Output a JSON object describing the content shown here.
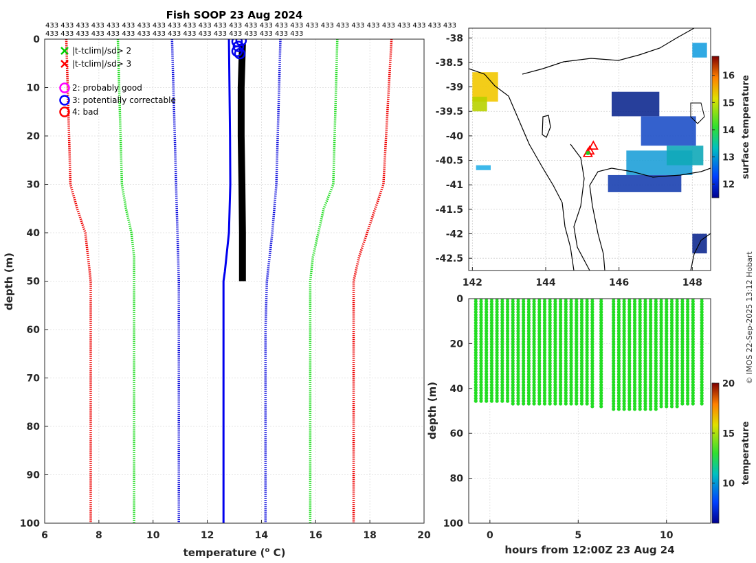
{
  "figure": {
    "copyright": "© IMOS 22-Sep-2025 13:12 Hobart"
  },
  "chart_data": [
    {
      "id": "profile",
      "type": "line",
      "title": "Fish SOOP 23 Aug 2024",
      "xlabel": "temperature (",
      "xlabel_sup": "o",
      "xlabel_end": " C)",
      "ylabel": "depth (m)",
      "xlim": [
        6,
        20
      ],
      "ylim": [
        100,
        0
      ],
      "xticks": [
        6,
        8,
        10,
        12,
        14,
        16,
        18,
        20
      ],
      "yticks": [
        0,
        10,
        20,
        30,
        40,
        50,
        60,
        70,
        80,
        90,
        100
      ],
      "grid": true,
      "top_labels": {
        "row1_text": "433",
        "row1_count": 27,
        "row2_text": "433",
        "row2_count": 17
      },
      "legend": [
        {
          "label": "|t-tclim|/sd> 2",
          "marker": "x",
          "color": "#00cc00"
        },
        {
          "label": "|t-tclim|/sd> 3",
          "marker": "x",
          "color": "#ff0000"
        },
        {
          "label": "2: probably good",
          "marker": "o",
          "color": "#ff00ff"
        },
        {
          "label": "3: potentially correctable",
          "marker": "o",
          "color": "#0000ff"
        },
        {
          "label": "4: bad",
          "marker": "o",
          "color": "#ff0000"
        }
      ],
      "series": [
        {
          "name": "clim -3sd",
          "color": "#ee0000",
          "points": [
            [
              6.8,
              0
            ],
            [
              6.85,
              10
            ],
            [
              6.9,
              20
            ],
            [
              6.95,
              30
            ],
            [
              7.2,
              35
            ],
            [
              7.5,
              40
            ],
            [
              7.6,
              45
            ],
            [
              7.7,
              50
            ],
            [
              7.7,
              60
            ],
            [
              7.7,
              70
            ],
            [
              7.7,
              80
            ],
            [
              7.7,
              90
            ],
            [
              7.7,
              100
            ]
          ]
        },
        {
          "name": "clim -2sd",
          "color": "#22dd22",
          "points": [
            [
              8.7,
              0
            ],
            [
              8.75,
              10
            ],
            [
              8.8,
              20
            ],
            [
              8.85,
              30
            ],
            [
              9.0,
              35
            ],
            [
              9.2,
              40
            ],
            [
              9.3,
              45
            ],
            [
              9.3,
              50
            ],
            [
              9.3,
              60
            ],
            [
              9.3,
              70
            ],
            [
              9.3,
              80
            ],
            [
              9.3,
              90
            ],
            [
              9.3,
              100
            ]
          ]
        },
        {
          "name": "clim -1sd",
          "color": "#1111dd",
          "points": [
            [
              10.7,
              0
            ],
            [
              10.75,
              10
            ],
            [
              10.8,
              20
            ],
            [
              10.85,
              30
            ],
            [
              10.9,
              40
            ],
            [
              10.95,
              50
            ],
            [
              10.95,
              60
            ],
            [
              10.95,
              70
            ],
            [
              10.95,
              80
            ],
            [
              10.95,
              90
            ],
            [
              10.95,
              100
            ]
          ]
        },
        {
          "name": "clim +1sd",
          "color": "#1111dd",
          "points": [
            [
              14.7,
              0
            ],
            [
              14.65,
              10
            ],
            [
              14.6,
              20
            ],
            [
              14.55,
              30
            ],
            [
              14.4,
              40
            ],
            [
              14.2,
              50
            ],
            [
              14.15,
              60
            ],
            [
              14.15,
              70
            ],
            [
              14.15,
              80
            ],
            [
              14.15,
              90
            ],
            [
              14.15,
              100
            ]
          ]
        },
        {
          "name": "clim +2sd",
          "color": "#22dd22",
          "points": [
            [
              16.8,
              0
            ],
            [
              16.75,
              10
            ],
            [
              16.7,
              20
            ],
            [
              16.65,
              30
            ],
            [
              16.3,
              35
            ],
            [
              16.1,
              40
            ],
            [
              15.9,
              45
            ],
            [
              15.8,
              50
            ],
            [
              15.8,
              60
            ],
            [
              15.8,
              70
            ],
            [
              15.8,
              80
            ],
            [
              15.8,
              90
            ],
            [
              15.8,
              100
            ]
          ]
        },
        {
          "name": "clim +3sd",
          "color": "#ee0000",
          "points": [
            [
              18.8,
              0
            ],
            [
              18.7,
              10
            ],
            [
              18.6,
              20
            ],
            [
              18.5,
              30
            ],
            [
              18.2,
              35
            ],
            [
              17.9,
              40
            ],
            [
              17.6,
              45
            ],
            [
              17.4,
              50
            ],
            [
              17.4,
              60
            ],
            [
              17.4,
              70
            ],
            [
              17.4,
              80
            ],
            [
              17.4,
              90
            ],
            [
              17.4,
              100
            ]
          ]
        },
        {
          "name": "clim mean",
          "color": "#0000ee",
          "width": 3,
          "solid": true,
          "points": [
            [
              12.8,
              0
            ],
            [
              12.82,
              10
            ],
            [
              12.84,
              20
            ],
            [
              12.85,
              30
            ],
            [
              12.8,
              40
            ],
            [
              12.65,
              48
            ],
            [
              12.6,
              50
            ],
            [
              12.6,
              60
            ],
            [
              12.6,
              70
            ],
            [
              12.6,
              80
            ],
            [
              12.6,
              90
            ],
            [
              12.6,
              100
            ]
          ]
        },
        {
          "name": "profiles",
          "color": "#000000",
          "width": 10,
          "solid": true,
          "points": [
            [
              13.3,
              1
            ],
            [
              13.25,
              10
            ],
            [
              13.25,
              20
            ],
            [
              13.28,
              30
            ],
            [
              13.3,
              40
            ],
            [
              13.3,
              50
            ]
          ]
        }
      ],
      "flag_circles": [
        [
          13.1,
          0.5
        ],
        [
          13.25,
          0.3
        ],
        [
          13.15,
          1.5
        ],
        [
          13.1,
          2.5
        ],
        [
          13.2,
          3.0
        ]
      ]
    },
    {
      "id": "map",
      "type": "heatmap",
      "colorbar_label": "surface temperature",
      "colorbar_range": [
        11.5,
        16.7
      ],
      "colorbar_ticks": [
        12,
        13,
        14,
        15,
        16
      ],
      "xlim": [
        141.9,
        148.5
      ],
      "ylim": [
        -42.75,
        -37.8
      ],
      "xticks": [
        142,
        144,
        146,
        148
      ],
      "yticks": [
        -38,
        -38.5,
        -39,
        -39.5,
        -40,
        -40.5,
        -41,
        -41.5,
        -42,
        -42.5
      ],
      "ship_markers": [
        [
          145.2,
          -40.3
        ],
        [
          145.3,
          -40.2
        ],
        [
          145.15,
          -40.35
        ]
      ],
      "patches": [
        {
          "lon": 142.0,
          "lat": -38.7,
          "w": 0.7,
          "h": 0.6,
          "color": "#f2c800"
        },
        {
          "lon": 142.0,
          "lat": -39.2,
          "w": 0.4,
          "h": 0.3,
          "color": "#b8d200"
        },
        {
          "lon": 145.8,
          "lat": -39.1,
          "w": 1.3,
          "h": 0.5,
          "color": "#102a90"
        },
        {
          "lon": 146.6,
          "lat": -39.6,
          "w": 1.5,
          "h": 0.6,
          "color": "#1e50c8"
        },
        {
          "lon": 146.2,
          "lat": -40.3,
          "w": 1.8,
          "h": 0.5,
          "color": "#1ea0d8"
        },
        {
          "lon": 145.7,
          "lat": -40.8,
          "w": 2.0,
          "h": 0.35,
          "color": "#1a40b0"
        },
        {
          "lon": 147.3,
          "lat": -40.2,
          "w": 1.0,
          "h": 0.4,
          "color": "#10a8b8"
        },
        {
          "lon": 148.0,
          "lat": -38.1,
          "w": 0.4,
          "h": 0.3,
          "color": "#1aa0e0"
        },
        {
          "lon": 142.1,
          "lat": -40.6,
          "w": 0.4,
          "h": 0.1,
          "color": "#28b0e8"
        },
        {
          "lon": 148.0,
          "lat": -42.0,
          "w": 0.4,
          "h": 0.4,
          "color": "#102a90"
        }
      ]
    },
    {
      "id": "timeseries",
      "type": "scatter",
      "xlabel": "hours from 12:00Z 23 Aug 24",
      "ylabel": "depth (m)",
      "colorbar_label": "temperature",
      "colorbar_range": [
        6,
        20
      ],
      "colorbar_ticks": [
        10,
        15,
        20
      ],
      "xlim": [
        -1.2,
        12.5
      ],
      "ylim": [
        100,
        0
      ],
      "xticks": [
        0,
        5,
        10
      ],
      "yticks": [
        0,
        20,
        40,
        60,
        80,
        100
      ],
      "point_color": "#22dd22",
      "casts": [
        {
          "t": -0.8,
          "max_depth": 46
        },
        {
          "t": -0.5,
          "max_depth": 46
        },
        {
          "t": -0.2,
          "max_depth": 46
        },
        {
          "t": 0.1,
          "max_depth": 46
        },
        {
          "t": 0.4,
          "max_depth": 46
        },
        {
          "t": 0.7,
          "max_depth": 46.5
        },
        {
          "t": 1.0,
          "max_depth": 46.5
        },
        {
          "t": 1.3,
          "max_depth": 47
        },
        {
          "t": 1.6,
          "max_depth": 47
        },
        {
          "t": 1.9,
          "max_depth": 47
        },
        {
          "t": 2.2,
          "max_depth": 47.5
        },
        {
          "t": 2.5,
          "max_depth": 47.5
        },
        {
          "t": 2.8,
          "max_depth": 47.5
        },
        {
          "t": 3.1,
          "max_depth": 48
        },
        {
          "t": 3.4,
          "max_depth": 48
        },
        {
          "t": 3.7,
          "max_depth": 48
        },
        {
          "t": 4.0,
          "max_depth": 48
        },
        {
          "t": 4.3,
          "max_depth": 48
        },
        {
          "t": 4.6,
          "max_depth": 48
        },
        {
          "t": 4.9,
          "max_depth": 48
        },
        {
          "t": 5.2,
          "max_depth": 48
        },
        {
          "t": 5.5,
          "max_depth": 48
        },
        {
          "t": 5.8,
          "max_depth": 48.5
        },
        {
          "t": 6.3,
          "max_depth": 48.5
        },
        {
          "t": 7.0,
          "max_depth": 50
        },
        {
          "t": 7.3,
          "max_depth": 50
        },
        {
          "t": 7.6,
          "max_depth": 50
        },
        {
          "t": 7.9,
          "max_depth": 50
        },
        {
          "t": 8.2,
          "max_depth": 50
        },
        {
          "t": 8.5,
          "max_depth": 49.5
        },
        {
          "t": 8.8,
          "max_depth": 49.5
        },
        {
          "t": 9.1,
          "max_depth": 49.5
        },
        {
          "t": 9.4,
          "max_depth": 49.5
        },
        {
          "t": 9.7,
          "max_depth": 49
        },
        {
          "t": 10.0,
          "max_depth": 49
        },
        {
          "t": 10.3,
          "max_depth": 48.5
        },
        {
          "t": 10.6,
          "max_depth": 48.5
        },
        {
          "t": 10.9,
          "max_depth": 48
        },
        {
          "t": 11.2,
          "max_depth": 48
        },
        {
          "t": 11.5,
          "max_depth": 48
        },
        {
          "t": 12.0,
          "max_depth": 47
        }
      ]
    }
  ]
}
